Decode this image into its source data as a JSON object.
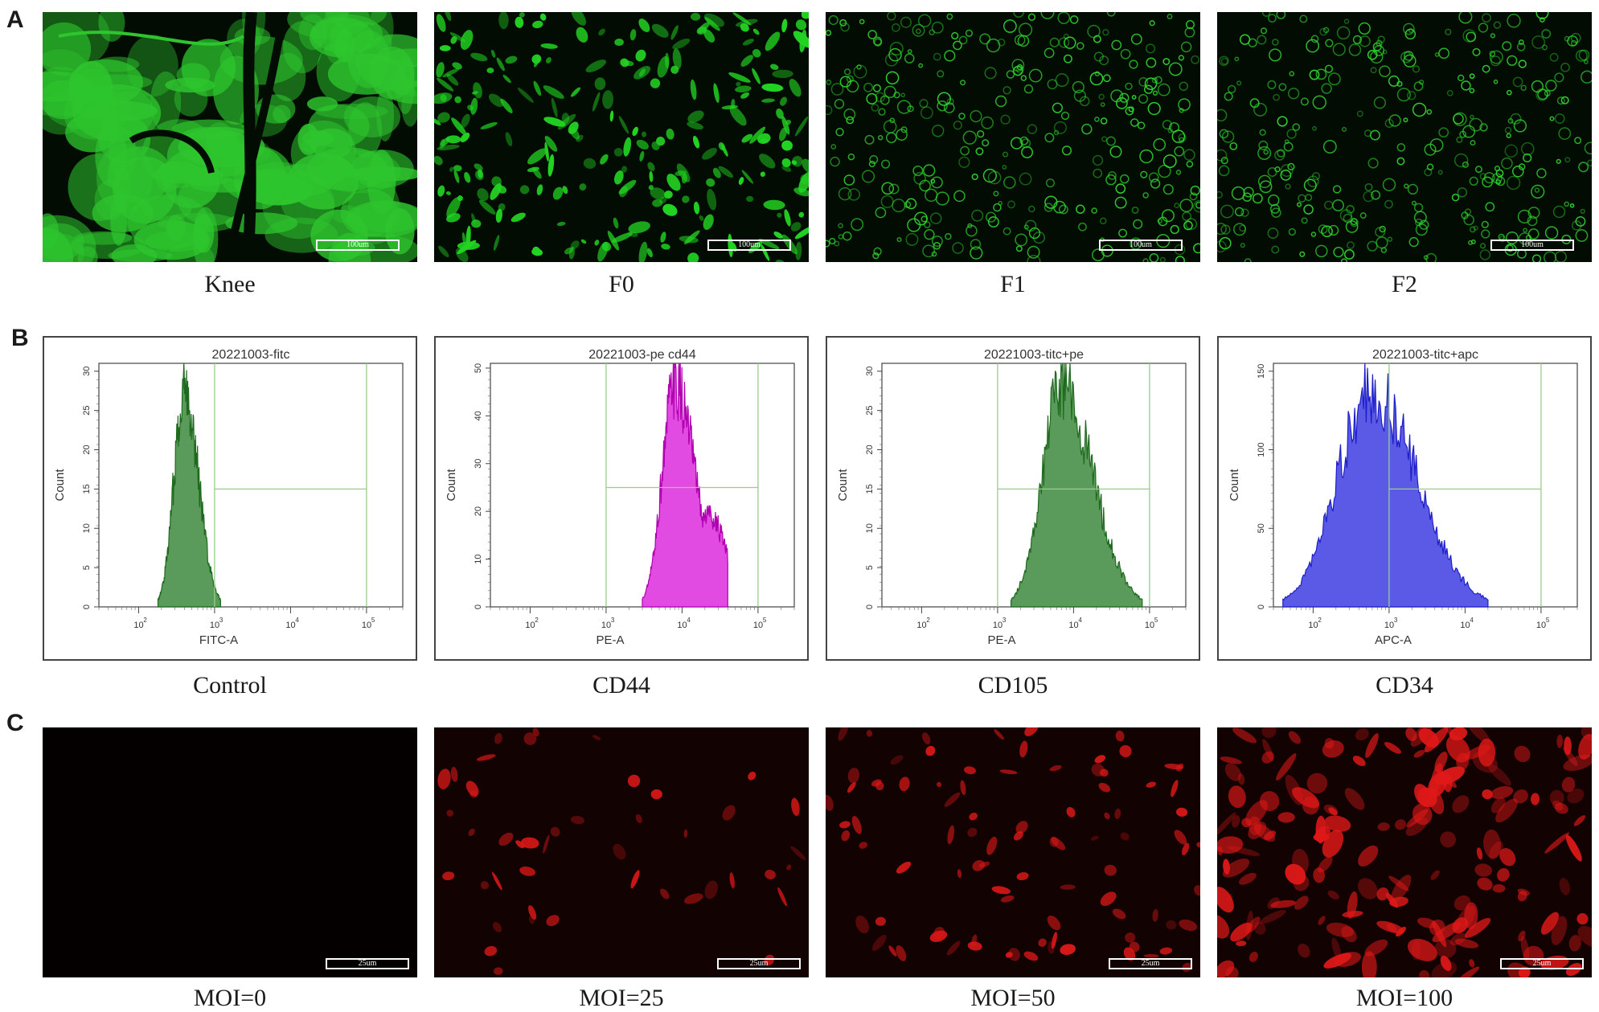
{
  "panels": {
    "A": {
      "letter": "A",
      "images": [
        {
          "caption": "Knee",
          "scale": "100um",
          "color": "#2ec52e"
        },
        {
          "caption": "F0",
          "scale": "100um",
          "color": "#22d422"
        },
        {
          "caption": "F1",
          "scale": "100um",
          "color": "#30d030"
        },
        {
          "caption": "F2",
          "scale": "100um",
          "color": "#30d030"
        }
      ]
    },
    "B": {
      "letter": "B",
      "plots": [
        {
          "caption": "Control",
          "title": "20221003-fitc",
          "xlabel": "FITC-A",
          "ylabel": "Count",
          "fill": "#5a9a5a",
          "stroke": "#1f6a1f"
        },
        {
          "caption": "CD44",
          "title": "20221003-pe cd44",
          "xlabel": "PE-A",
          "ylabel": "Count",
          "fill": "#e24be2",
          "stroke": "#b000b0"
        },
        {
          "caption": "CD105",
          "title": "20221003-titc+pe",
          "xlabel": "PE-A",
          "ylabel": "Count",
          "fill": "#5a9a5a",
          "stroke": "#1f6a1f"
        },
        {
          "caption": "CD34",
          "title": "20221003-titc+apc",
          "xlabel": "APC-A",
          "ylabel": "Count",
          "fill": "#5a5ae6",
          "stroke": "#1e1ec8"
        }
      ]
    },
    "C": {
      "letter": "C",
      "images": [
        {
          "caption": "MOI=0",
          "scale": "25um"
        },
        {
          "caption": "MOI=25",
          "scale": "25um"
        },
        {
          "caption": "MOI=50",
          "scale": "25um"
        },
        {
          "caption": "MOI=100",
          "scale": "25um"
        }
      ]
    }
  },
  "chart_data": [
    {
      "type": "area",
      "title": "20221003-fitc",
      "xlabel": "FITC-A",
      "ylabel": "Count",
      "x_scale": "log",
      "xlim": [
        30,
        300000
      ],
      "ylim": [
        0,
        31
      ],
      "y_ticks": [
        "0",
        "5",
        "10",
        "15",
        "20",
        "25",
        "30"
      ],
      "x_ticks": [
        "10^2",
        "10^3",
        "10^4",
        "10^5"
      ],
      "peak_x": 400,
      "peak_y": 30,
      "range_x": [
        180,
        1200
      ],
      "gate_lines": {
        "vertical_x": [
          1000,
          100000
        ],
        "horizontal_y": 15
      }
    },
    {
      "type": "area",
      "title": "20221003-pe cd44",
      "xlabel": "PE-A",
      "ylabel": "Count",
      "x_scale": "log",
      "xlim": [
        30,
        300000
      ],
      "ylim": [
        0,
        51
      ],
      "y_ticks": [
        "0",
        "10",
        "20",
        "30",
        "40",
        "50"
      ],
      "x_ticks": [
        "10^2",
        "10^3",
        "10^4",
        "10^5"
      ],
      "peak_x": 8000,
      "peak_y": 50,
      "range_x": [
        3000,
        40000
      ],
      "gate_lines": {
        "vertical_x": [
          1000,
          100000
        ],
        "horizontal_y": 25
      }
    },
    {
      "type": "area",
      "title": "20221003-titc+pe",
      "xlabel": "PE-A",
      "ylabel": "Count",
      "x_scale": "log",
      "xlim": [
        30,
        300000
      ],
      "ylim": [
        0,
        31
      ],
      "y_ticks": [
        "0",
        "5",
        "10",
        "15",
        "20",
        "25",
        "30"
      ],
      "x_ticks": [
        "10^2",
        "10^3",
        "10^4",
        "10^5"
      ],
      "peak_x": 7000,
      "peak_y": 30,
      "range_x": [
        1500,
        80000
      ],
      "gate_lines": {
        "vertical_x": [
          1000,
          100000
        ],
        "horizontal_y": 15
      }
    },
    {
      "type": "area",
      "title": "20221003-titc+apc",
      "xlabel": "APC-A",
      "ylabel": "Count",
      "x_scale": "log",
      "xlim": [
        30,
        300000
      ],
      "ylim": [
        0,
        155
      ],
      "y_ticks": [
        "0",
        "50",
        "100",
        "150"
      ],
      "x_ticks": [
        "10^2",
        "10^3",
        "10^4",
        "10^5"
      ],
      "peak_x": 600,
      "peak_y": 148,
      "range_x": [
        40,
        20000
      ],
      "gate_lines": {
        "vertical_x": [
          1000,
          100000
        ],
        "horizontal_y": 75
      }
    }
  ]
}
